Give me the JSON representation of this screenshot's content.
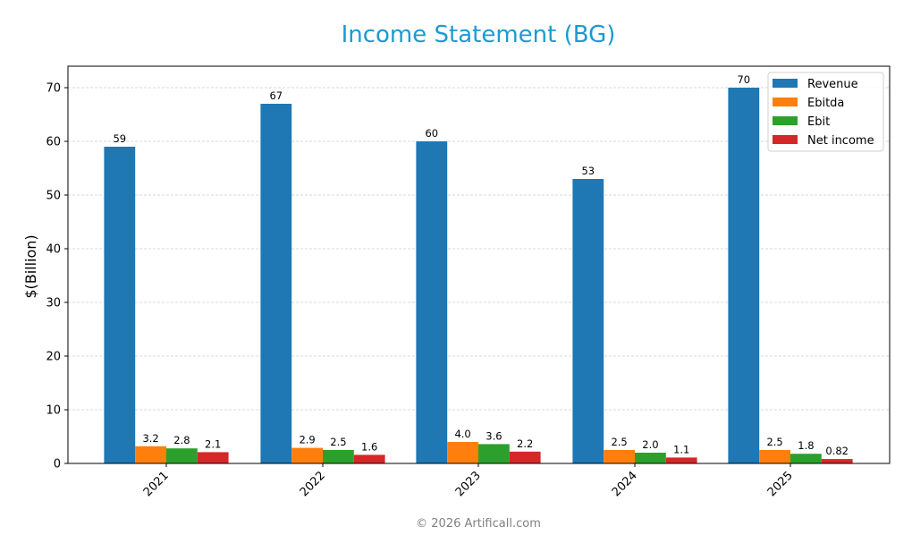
{
  "title": "Income Statement (BG)",
  "footer": "© 2026 Artificall.com",
  "colors": {
    "title": "#1a9bd0",
    "Revenue": "#1f77b4",
    "Ebitda": "#ff7f0e",
    "Ebit": "#2ca02c",
    "Net income": "#d62728"
  },
  "chart_data": {
    "type": "bar",
    "title": "Income Statement (BG)",
    "xlabel": "",
    "ylabel": "$(Billion)",
    "ylim": [
      0,
      74
    ],
    "yticks": [
      0,
      10,
      20,
      30,
      40,
      50,
      60,
      70
    ],
    "grid": true,
    "legend_position": "upper right",
    "categories": [
      "2021",
      "2022",
      "2023",
      "2024",
      "2025"
    ],
    "series": [
      {
        "name": "Revenue",
        "values": [
          59,
          67,
          60,
          53,
          70
        ],
        "labels": [
          "59",
          "67",
          "60",
          "53",
          "70"
        ]
      },
      {
        "name": "Ebitda",
        "values": [
          3.2,
          2.9,
          4.0,
          2.5,
          2.5
        ],
        "labels": [
          "3.2",
          "2.9",
          "4.0",
          "2.5",
          "2.5"
        ]
      },
      {
        "name": "Ebit",
        "values": [
          2.8,
          2.5,
          3.6,
          2.0,
          1.8
        ],
        "labels": [
          "2.8",
          "2.5",
          "3.6",
          "2.0",
          "1.8"
        ]
      },
      {
        "name": "Net income",
        "values": [
          2.1,
          1.6,
          2.2,
          1.1,
          0.82
        ],
        "labels": [
          "2.1",
          "1.6",
          "2.2",
          "1.1",
          "0.82"
        ]
      }
    ]
  }
}
